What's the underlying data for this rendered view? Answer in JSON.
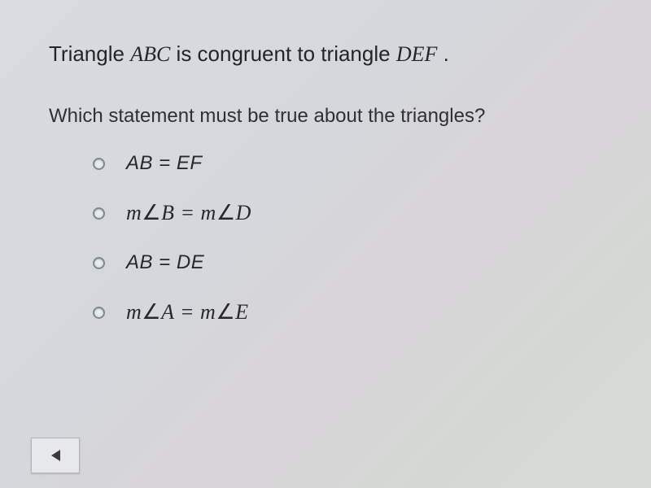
{
  "statement": {
    "part1": "Triangle ",
    "tri1": "ABC",
    "part2": " is congruent to triangle ",
    "tri2": "DEF",
    "part3": " ."
  },
  "question": "Which statement must be true about the triangles?",
  "options": [
    {
      "type": "plain",
      "text": "AB = EF"
    },
    {
      "type": "angle",
      "prefix": "m",
      "ang1": "B",
      "mid": " = m",
      "ang2": "D"
    },
    {
      "type": "plain",
      "text": "AB = DE"
    },
    {
      "type": "angle",
      "prefix": "m",
      "ang1": "A",
      "mid": " = m",
      "ang2": "E"
    }
  ],
  "colors": {
    "background": "#d8dce0",
    "text": "#2a2a2a",
    "radio_border": "#808890",
    "button_bg": "#e6e8eb",
    "button_border": "#b0b4b8",
    "arrow": "#3a3a3a"
  },
  "fonts": {
    "body": "Arial, Helvetica, sans-serif",
    "math": "Times New Roman, Times, serif",
    "statement_size": 26,
    "question_size": 24,
    "option_size": 26
  }
}
